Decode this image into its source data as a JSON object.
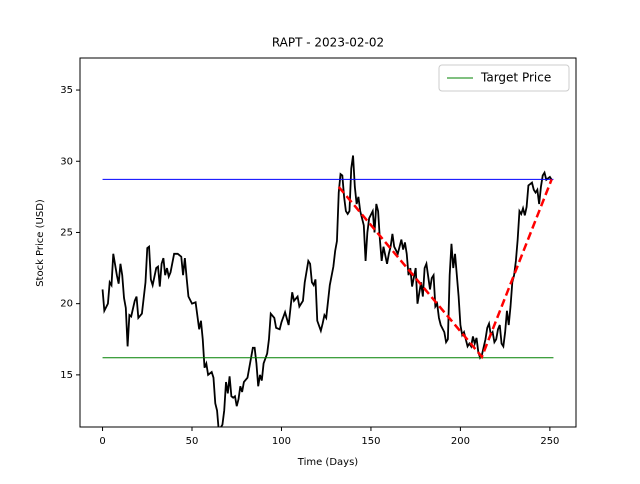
{
  "chart_data": {
    "type": "line",
    "title": "RAPT - 2023-02-02",
    "xlabel": "Time (Days)",
    "ylabel": "Stock Price (USD)",
    "xlim": [
      -12.6,
      264.6
    ],
    "xticks": [
      0,
      50,
      100,
      150,
      200,
      250
    ],
    "ylim": [
      11.34,
      37.25
    ],
    "yticks": [
      15,
      20,
      25,
      30,
      35
    ],
    "legend": "upper right",
    "series": [
      {
        "color": "#000000",
        "width": 1.8,
        "dash": "none",
        "x": [
          0,
          1,
          3,
          4,
          5,
          6,
          8,
          9,
          10,
          11,
          12,
          13,
          14,
          15,
          16,
          18,
          19,
          20,
          22,
          24,
          25,
          26,
          27,
          28,
          30,
          31,
          32,
          33,
          34,
          35,
          36,
          37,
          38,
          40,
          42,
          44,
          45,
          46,
          47,
          48,
          50,
          52,
          54,
          55,
          56,
          57,
          58,
          59,
          61,
          62,
          63,
          64,
          65,
          66,
          67,
          68,
          69,
          70,
          71,
          72,
          73,
          74,
          75,
          76,
          77,
          78,
          79,
          81,
          82,
          84,
          85,
          86,
          87,
          88,
          89,
          90,
          92,
          93,
          94,
          96,
          97,
          99,
          100,
          102,
          104,
          106,
          107,
          109,
          110,
          112,
          113,
          115,
          116,
          117,
          118,
          119,
          120,
          122,
          123,
          124,
          125,
          127,
          129,
          130,
          131,
          132,
          133,
          134,
          135,
          136,
          137,
          138,
          139,
          140,
          141,
          142,
          143,
          144,
          145,
          146,
          147,
          148,
          149,
          151,
          152,
          153,
          154,
          155,
          156,
          157,
          159,
          160,
          161,
          162,
          163,
          165,
          167,
          168,
          169,
          170,
          171,
          172,
          173,
          175,
          176,
          178,
          179,
          180,
          181,
          183,
          184,
          185,
          186,
          187,
          188,
          189,
          191,
          192,
          193,
          194,
          195,
          196,
          197,
          198,
          199,
          200,
          201,
          202,
          203,
          204,
          205,
          206,
          207,
          208,
          209,
          210,
          211,
          212,
          214,
          215,
          216,
          217,
          218,
          219,
          220,
          221,
          222,
          223,
          224,
          225,
          226,
          227,
          228,
          229,
          230,
          231,
          232,
          233,
          234,
          235,
          236,
          237,
          238,
          239,
          240,
          241,
          242,
          243,
          244,
          245,
          246,
          247,
          248,
          250,
          251
        ],
        "values": [
          21,
          19.5,
          20,
          21.5,
          21.3,
          23.5,
          22,
          21.4,
          22.8,
          22,
          20.4,
          19.7,
          17,
          19.2,
          19.1,
          20.2,
          20.5,
          19,
          19.3,
          21.5,
          23.9,
          24,
          21.7,
          21.3,
          22.5,
          22.6,
          21.2,
          22.8,
          23.2,
          22,
          22.5,
          21.9,
          22.2,
          23.5,
          23.5,
          23.3,
          22,
          23.2,
          21.8,
          20.5,
          20,
          20.1,
          18.2,
          18.8,
          17.5,
          15.5,
          15.8,
          15,
          15.2,
          14.8,
          13,
          12.5,
          11,
          11.3,
          11.5,
          12.5,
          14.5,
          13.7,
          14.9,
          13.5,
          13.4,
          13.5,
          12.8,
          13.3,
          14.2,
          13.8,
          14.5,
          14.8,
          15.5,
          16.9,
          16.9,
          15.8,
          14.2,
          15,
          14.6,
          15.8,
          16.5,
          17.5,
          19.3,
          19,
          18.3,
          18.2,
          18.7,
          19.4,
          18.5,
          20.8,
          20.2,
          20.5,
          19.8,
          20.2,
          21.5,
          23,
          22.8,
          21.5,
          21.3,
          21.7,
          18.8,
          18.1,
          18.6,
          19.2,
          19,
          21.3,
          22.6,
          23.7,
          24.4,
          27.8,
          29.1,
          29,
          27.5,
          26.5,
          26.3,
          26.5,
          29.5,
          30.4,
          28.2,
          27,
          27.5,
          26.5,
          26,
          25.5,
          23,
          25,
          26,
          26.5,
          25,
          27,
          26.5,
          24.5,
          23,
          24,
          22.8,
          23.5,
          24,
          24.9,
          24,
          23.5,
          24.5,
          23.8,
          24.3,
          23.5,
          22,
          22.5,
          21.2,
          22.5,
          20,
          21.5,
          20.5,
          22.5,
          22.8,
          21,
          21.8,
          22,
          19.8,
          20,
          19,
          18.5,
          18,
          17.3,
          17.5,
          22,
          24.2,
          22.5,
          23.5,
          22,
          20.5,
          18.5,
          17.8,
          18,
          17.5,
          17,
          17.2,
          17,
          17.7,
          17.2,
          17.6,
          16.6,
          16.2,
          16.4,
          17.5,
          18.3,
          18.6,
          17.8,
          18,
          17.3,
          17.5,
          18.2,
          18.5,
          17.2,
          17,
          18,
          19.5,
          18.5,
          19.8,
          21.5,
          22,
          23,
          24.5,
          26.5,
          26.3,
          26.7,
          26.2,
          26.8,
          28.3,
          28.4,
          28.5,
          28,
          27.8,
          28,
          27,
          28.2,
          29,
          29.2,
          28.7,
          28.9,
          28.7
        ]
      },
      {
        "color": "#0000ff",
        "width": 1,
        "dash": "none",
        "x": [
          0,
          252
        ],
        "values": [
          28.73,
          28.73
        ]
      },
      {
        "name": "Target Price",
        "color": "#008000",
        "width": 1,
        "dash": "none",
        "x": [
          0,
          252
        ],
        "values": [
          16.2,
          16.2
        ]
      },
      {
        "color": "#ff0000",
        "width": 2.5,
        "dash": "8,4",
        "x": [
          132,
          212,
          251
        ],
        "values": [
          28.2,
          16.27,
          28.73
        ]
      }
    ]
  }
}
